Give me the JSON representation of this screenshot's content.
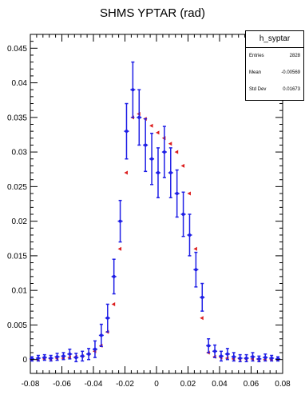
{
  "chart_data": {
    "type": "scatter",
    "title": "SHMS YPTAR (rad)",
    "xlabel": "",
    "ylabel": "",
    "xlim": [
      -0.08,
      0.08
    ],
    "ylim": [
      -0.002,
      0.047
    ],
    "x_ticks": [
      -0.08,
      -0.06,
      -0.04,
      -0.02,
      0,
      0.02,
      0.04,
      0.06,
      0.08
    ],
    "x_tick_labels": [
      "-0.08",
      "-0.06",
      "-0.04",
      "-0.02",
      "0",
      "0.02",
      "0.04",
      "0.06",
      "0.08"
    ],
    "y_ticks": [
      0,
      0.005,
      0.01,
      0.015,
      0.02,
      0.025,
      0.03,
      0.035,
      0.04,
      0.045
    ],
    "y_tick_labels": [
      "0",
      "0.005",
      "0.01",
      "0.015",
      "0.02",
      "0.025",
      "0.03",
      "0.035",
      "0.04",
      "0.045"
    ],
    "grid": false,
    "stats_box": {
      "name": "h_syptar",
      "rows": [
        {
          "label": "Entries",
          "value": "2828"
        },
        {
          "label": "Mean",
          "value": "-0.00569"
        },
        {
          "label": "Std Dev",
          "value": "0.01673"
        }
      ]
    },
    "series": [
      {
        "color": "#1e1ee6",
        "marker": "circle-errorbar",
        "x": [
          -0.079,
          -0.075,
          -0.071,
          -0.067,
          -0.063,
          -0.059,
          -0.055,
          -0.051,
          -0.047,
          -0.043,
          -0.039,
          -0.035,
          -0.031,
          -0.027,
          -0.023,
          -0.019,
          -0.015,
          -0.011,
          -0.007,
          -0.003,
          0.001,
          0.005,
          0.009,
          0.013,
          0.017,
          0.021,
          0.025,
          0.029,
          0.033,
          0.037,
          0.041,
          0.045,
          0.049,
          0.053,
          0.057,
          0.061,
          0.065,
          0.069,
          0.073,
          0.077
        ],
        "y": [
          0.0001,
          0.0002,
          0.0003,
          0.0002,
          0.0004,
          0.0005,
          0.0008,
          0.0003,
          0.0005,
          0.0008,
          0.0015,
          0.0035,
          0.006,
          0.012,
          0.02,
          0.033,
          0.039,
          0.035,
          0.031,
          0.029,
          0.027,
          0.03,
          0.027,
          0.024,
          0.021,
          0.018,
          0.013,
          0.009,
          0.002,
          0.0012,
          0.0005,
          0.0008,
          0.0004,
          0.0002,
          0.0002,
          0.0004,
          0.0001,
          0.0003,
          0.0002,
          0.0001
        ],
        "err": [
          0.0003,
          0.0004,
          0.0004,
          0.0004,
          0.0005,
          0.0005,
          0.0007,
          0.0006,
          0.0007,
          0.0008,
          0.0012,
          0.0016,
          0.002,
          0.0025,
          0.003,
          0.004,
          0.004,
          0.004,
          0.0038,
          0.0037,
          0.0036,
          0.0037,
          0.0036,
          0.0034,
          0.0032,
          0.003,
          0.0025,
          0.002,
          0.001,
          0.0009,
          0.0007,
          0.0008,
          0.0006,
          0.0005,
          0.0005,
          0.0006,
          0.0004,
          0.0005,
          0.0004,
          0.0003
        ]
      },
      {
        "color": "#dc1e1e",
        "marker": "triangle-left",
        "x": [
          -0.079,
          -0.075,
          -0.071,
          -0.067,
          -0.063,
          -0.059,
          -0.055,
          -0.051,
          -0.047,
          -0.043,
          -0.039,
          -0.035,
          -0.031,
          -0.027,
          -0.023,
          -0.019,
          -0.015,
          -0.011,
          -0.007,
          -0.003,
          0.001,
          0.005,
          0.009,
          0.013,
          0.017,
          0.021,
          0.025,
          0.029,
          0.033,
          0.037,
          0.041,
          0.045,
          0.049,
          0.053,
          0.057,
          0.061,
          0.065,
          0.069,
          0.073,
          0.077
        ],
        "y": [
          0,
          0,
          0.0001,
          0.0001,
          0.0002,
          0.0002,
          0.0003,
          0.0004,
          0.0005,
          0.0008,
          0.0012,
          0.002,
          0.004,
          0.008,
          0.016,
          0.027,
          0.035,
          0.0355,
          0.0348,
          0.0338,
          0.0328,
          0.032,
          0.0312,
          0.03,
          0.028,
          0.024,
          0.016,
          0.006,
          0.001,
          0.0004,
          0.0003,
          0.0002,
          0.0001,
          0.0001,
          0.0001,
          0.0001,
          0,
          0,
          0,
          0
        ]
      }
    ]
  }
}
